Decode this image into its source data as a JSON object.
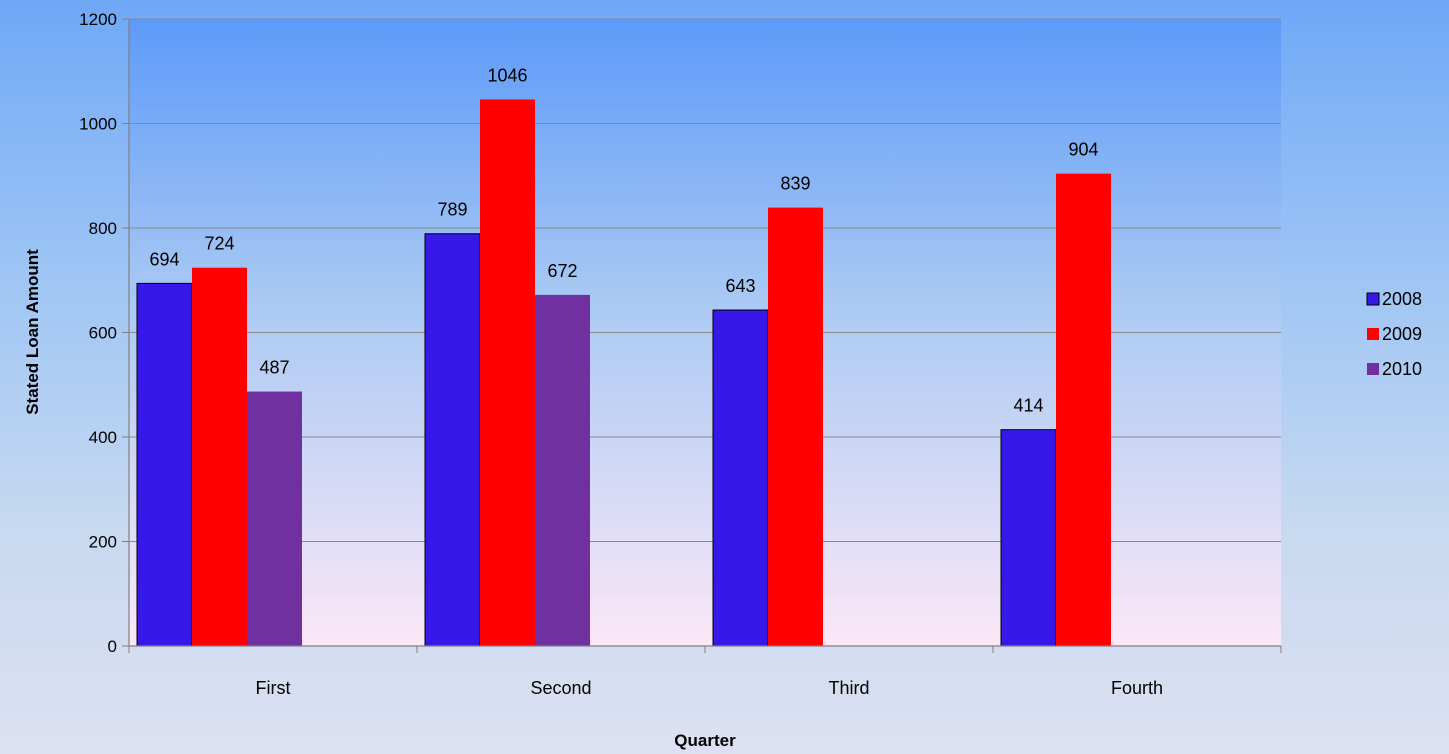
{
  "chart_data": {
    "type": "bar",
    "title": "",
    "xlabel": "Quarter",
    "ylabel": "Stated Loan Amount",
    "categories": [
      "First",
      "Second",
      "Third",
      "Fourth"
    ],
    "series": [
      {
        "name": "2008",
        "values": [
          694,
          789,
          643,
          414
        ],
        "color": "#3618e8"
      },
      {
        "name": "2009",
        "values": [
          724,
          1046,
          839,
          904
        ],
        "color": "#ff0000"
      },
      {
        "name": "2010",
        "values": [
          487,
          672,
          null,
          null
        ],
        "color": "#7030a0"
      }
    ],
    "ylim": [
      0,
      1200
    ],
    "yticks": [
      "0",
      "200",
      "400",
      "600",
      "800",
      "1000",
      "1200"
    ],
    "grid": true,
    "legend_position": "right"
  }
}
